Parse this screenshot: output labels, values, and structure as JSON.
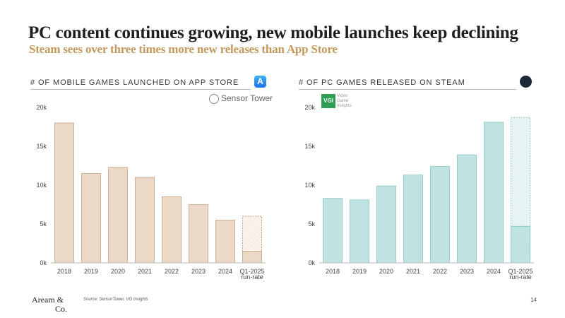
{
  "header": {
    "title": "PC content continues growing, new mobile launches keep declining",
    "subtitle": "Steam sees over three times more new releases than App Store"
  },
  "left_panel": {
    "title": "# OF MOBILE GAMES LAUNCHED ON APP STORE",
    "logo_text": "Sensor Tower",
    "icon": "app-store-icon"
  },
  "right_panel": {
    "title": "# OF PC GAMES RELEASED ON STEAM",
    "logo_abbr": "VGI",
    "logo_words": [
      "Video",
      "Game",
      "Insights"
    ],
    "icon": "steam-icon"
  },
  "footer": {
    "logo_line1": "Aream &",
    "logo_line2": "Co.",
    "source": "Source: SensorTower, VG Insights",
    "page_number": "14"
  },
  "chart_data": [
    {
      "type": "bar",
      "title": "# OF MOBILE GAMES LAUNCHED ON APP STORE",
      "categories": [
        "2018",
        "2019",
        "2020",
        "2021",
        "2022",
        "2023",
        "2024",
        "Q1-2025"
      ],
      "category_sublabels": [
        "",
        "",
        "",
        "",
        "",
        "",
        "",
        "run-rate"
      ],
      "values": [
        18000,
        11500,
        12300,
        11000,
        8500,
        7500,
        5500,
        1500
      ],
      "run_rate_total": 6000,
      "yticks": [
        "0k",
        "5k",
        "10k",
        "15k",
        "20k"
      ],
      "ylim": [
        0,
        20000
      ],
      "colors": {
        "bar": "#ecd8c6",
        "edge": "#c4a383",
        "run_rate": "#fbf3ec"
      }
    },
    {
      "type": "bar",
      "title": "# OF PC GAMES RELEASED ON STEAM",
      "categories": [
        "2018",
        "2019",
        "2020",
        "2021",
        "2022",
        "2023",
        "2024",
        "Q1-2025"
      ],
      "category_sublabels": [
        "",
        "",
        "",
        "",
        "",
        "",
        "",
        "run-rate"
      ],
      "values": [
        8300,
        8100,
        9900,
        11300,
        12400,
        13900,
        18100,
        4700
      ],
      "run_rate_total": 18700,
      "yticks": [
        "0k",
        "5k",
        "10k",
        "15k",
        "20k"
      ],
      "ylim": [
        0,
        20000
      ],
      "colors": {
        "bar": "#bfe3e1",
        "edge": "#86c6c2",
        "run_rate": "#e9f5f4"
      }
    }
  ]
}
